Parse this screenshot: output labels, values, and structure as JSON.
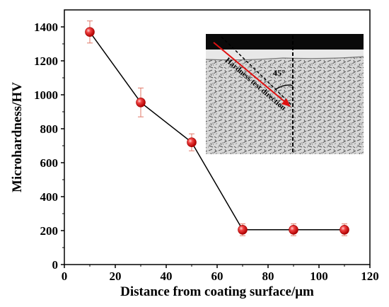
{
  "chart_data": {
    "type": "scatter",
    "title": "",
    "xlabel": "Distance from coating surface/μm",
    "ylabel": "Microhardness/HV",
    "xlim": [
      0,
      120
    ],
    "ylim": [
      0,
      1500
    ],
    "x_ticks": [
      0,
      20,
      40,
      60,
      80,
      100,
      120
    ],
    "y_ticks": [
      0,
      200,
      400,
      600,
      800,
      1000,
      1200,
      1400
    ],
    "grid": false,
    "legend": "none",
    "marker_color": "#e8262a",
    "line_color": "#000000",
    "errorbar_color": "#e07a6a",
    "series": [
      {
        "x": [
          10,
          30,
          50,
          70,
          90,
          110
        ],
        "y": [
          1370,
          955,
          720,
          205,
          205,
          205
        ],
        "yerr": [
          65,
          85,
          50,
          35,
          35,
          35
        ]
      }
    ],
    "inset": {
      "annotation_text": "Hardness test direction",
      "angle_label": "45°"
    }
  }
}
